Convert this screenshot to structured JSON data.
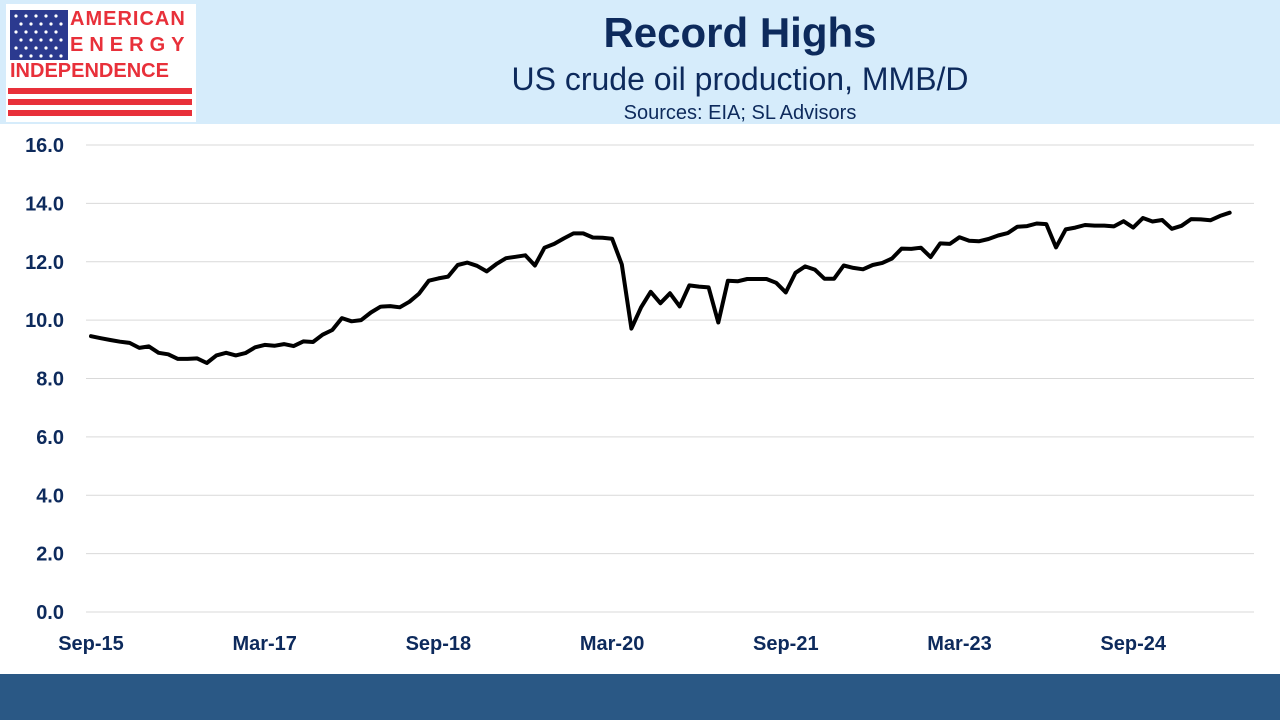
{
  "header": {
    "title": "Record Highs",
    "subtitle": "US crude oil production, MMB/D",
    "source": "Sources: EIA; SL Advisors"
  },
  "logo": {
    "line1": "AMERICAN",
    "line2": "ENERGY",
    "line3": "INDEPENDENCE",
    "flag_icon": "us-flag-icon",
    "colors": {
      "red": "#e8303a",
      "blue": "#2b3a8f"
    }
  },
  "colors": {
    "header_band": "#d6ecfb",
    "title_text": "#0d2a5c",
    "line": "#000000",
    "grid": "#d9d9d9",
    "footer_band": "#2a5885"
  },
  "chart_data": {
    "type": "line",
    "title": "Record Highs",
    "subtitle": "US crude oil production, MMB/D",
    "xlabel": "",
    "ylabel": "",
    "ylim": [
      0,
      16
    ],
    "y_ticks": [
      "0.0",
      "2.0",
      "4.0",
      "6.0",
      "8.0",
      "10.0",
      "12.0",
      "14.0",
      "16.0"
    ],
    "x_ticks": [
      "Sep-15",
      "Mar-17",
      "Sep-18",
      "Mar-20",
      "Sep-21",
      "Mar-23",
      "Sep-24"
    ],
    "grid": true,
    "legend": "none",
    "series": [
      {
        "x": [
          "2015-09",
          "2015-10",
          "2015-11",
          "2015-12",
          "2016-01",
          "2016-02",
          "2016-03",
          "2016-04",
          "2016-05",
          "2016-06",
          "2016-07",
          "2016-08",
          "2016-09",
          "2016-10",
          "2016-11",
          "2016-12",
          "2017-01",
          "2017-02",
          "2017-03",
          "2017-04",
          "2017-05",
          "2017-06",
          "2017-07",
          "2017-08",
          "2017-09",
          "2017-10",
          "2017-11",
          "2017-12",
          "2018-01",
          "2018-02",
          "2018-03",
          "2018-04",
          "2018-05",
          "2018-06",
          "2018-07",
          "2018-08",
          "2018-09",
          "2018-10",
          "2018-11",
          "2018-12",
          "2019-01",
          "2019-02",
          "2019-03",
          "2019-04",
          "2019-05",
          "2019-06",
          "2019-07",
          "2019-08",
          "2019-09",
          "2019-10",
          "2019-11",
          "2019-12",
          "2020-01",
          "2020-02",
          "2020-03",
          "2020-04",
          "2020-05",
          "2020-06",
          "2020-07",
          "2020-08",
          "2020-09",
          "2020-10",
          "2020-11",
          "2020-12",
          "2021-01",
          "2021-02",
          "2021-03",
          "2021-04",
          "2021-05",
          "2021-06",
          "2021-07",
          "2021-08",
          "2021-09",
          "2021-10",
          "2021-11",
          "2021-12",
          "2022-01",
          "2022-02",
          "2022-03",
          "2022-04",
          "2022-05",
          "2022-06",
          "2022-07",
          "2022-08",
          "2022-09",
          "2022-10",
          "2022-11",
          "2022-12",
          "2023-01",
          "2023-02",
          "2023-03",
          "2023-04",
          "2023-05",
          "2023-06",
          "2023-07",
          "2023-08",
          "2023-09",
          "2023-10",
          "2023-11",
          "2023-12",
          "2024-01",
          "2024-02",
          "2024-03",
          "2024-04",
          "2024-05",
          "2024-06",
          "2024-07",
          "2024-08",
          "2024-09",
          "2024-10",
          "2024-11",
          "2024-12",
          "2025-01",
          "2025-02",
          "2025-03",
          "2025-04",
          "2025-05",
          "2025-06",
          "2025-07"
        ],
        "values": [
          9.45,
          9.38,
          9.32,
          9.26,
          9.22,
          9.05,
          9.1,
          8.88,
          8.83,
          8.67,
          8.67,
          8.69,
          8.53,
          8.79,
          8.88,
          8.79,
          8.87,
          9.07,
          9.15,
          9.12,
          9.18,
          9.11,
          9.27,
          9.25,
          9.5,
          9.66,
          10.07,
          9.96,
          10.0,
          10.26,
          10.46,
          10.48,
          10.44,
          10.63,
          10.91,
          11.35,
          11.43,
          11.49,
          11.89,
          11.97,
          11.86,
          11.67,
          11.92,
          12.12,
          12.17,
          12.22,
          11.87,
          12.48,
          12.61,
          12.8,
          12.97,
          12.97,
          12.83,
          12.82,
          12.79,
          11.91,
          9.71,
          10.44,
          10.97,
          10.58,
          10.92,
          10.47,
          11.19,
          11.15,
          11.12,
          9.92,
          11.35,
          11.33,
          11.41,
          11.41,
          11.41,
          11.28,
          10.95,
          11.62,
          11.84,
          11.73,
          11.42,
          11.42,
          11.87,
          11.79,
          11.74,
          11.89,
          11.96,
          12.11,
          12.45,
          12.44,
          12.48,
          12.16,
          12.63,
          12.61,
          12.84,
          12.72,
          12.7,
          12.78,
          12.9,
          12.98,
          13.2,
          13.22,
          13.31,
          13.29,
          12.49,
          13.11,
          13.17,
          13.26,
          13.24,
          13.24,
          13.21,
          13.39,
          13.17,
          13.5,
          13.38,
          13.43,
          13.13,
          13.23,
          13.46,
          13.45,
          13.42,
          13.57,
          13.68
        ]
      }
    ]
  }
}
